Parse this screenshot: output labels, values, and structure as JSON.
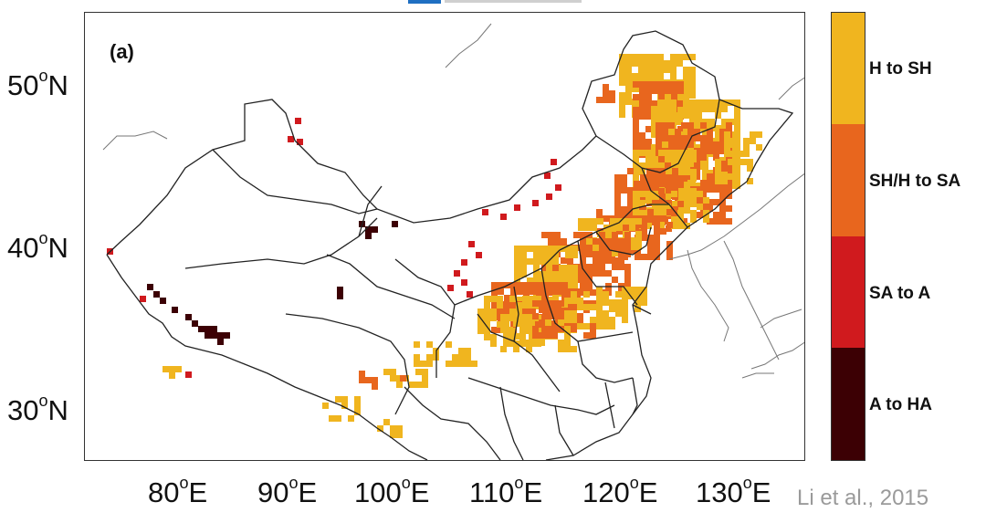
{
  "figure": {
    "panel_label": "(a)",
    "citation": "Li et al., 2015",
    "x_ticks": [
      {
        "value": "80",
        "unit": "o",
        "hemi": "E"
      },
      {
        "value": "90",
        "unit": "o",
        "hemi": "E"
      },
      {
        "value": "100",
        "unit": "o",
        "hemi": "E"
      },
      {
        "value": "110",
        "unit": "o",
        "hemi": "E"
      },
      {
        "value": "120",
        "unit": "o",
        "hemi": "E"
      },
      {
        "value": "130",
        "unit": "o",
        "hemi": "E"
      }
    ],
    "y_ticks": [
      {
        "value": "50",
        "unit": "o",
        "hemi": "N"
      },
      {
        "value": "40",
        "unit": "o",
        "hemi": "N"
      },
      {
        "value": "30",
        "unit": "o",
        "hemi": "N"
      }
    ],
    "lon_range": [
      72,
      136
    ],
    "lat_range": [
      27,
      54
    ]
  },
  "legend": {
    "items": [
      {
        "label": "H to SH",
        "color": "#F0B51F"
      },
      {
        "label": "SH/H to SA",
        "color": "#E8661E"
      },
      {
        "label": "SA to A",
        "color": "#D01A1E"
      },
      {
        "label": "A to HA",
        "color": "#3C0004"
      }
    ]
  }
}
